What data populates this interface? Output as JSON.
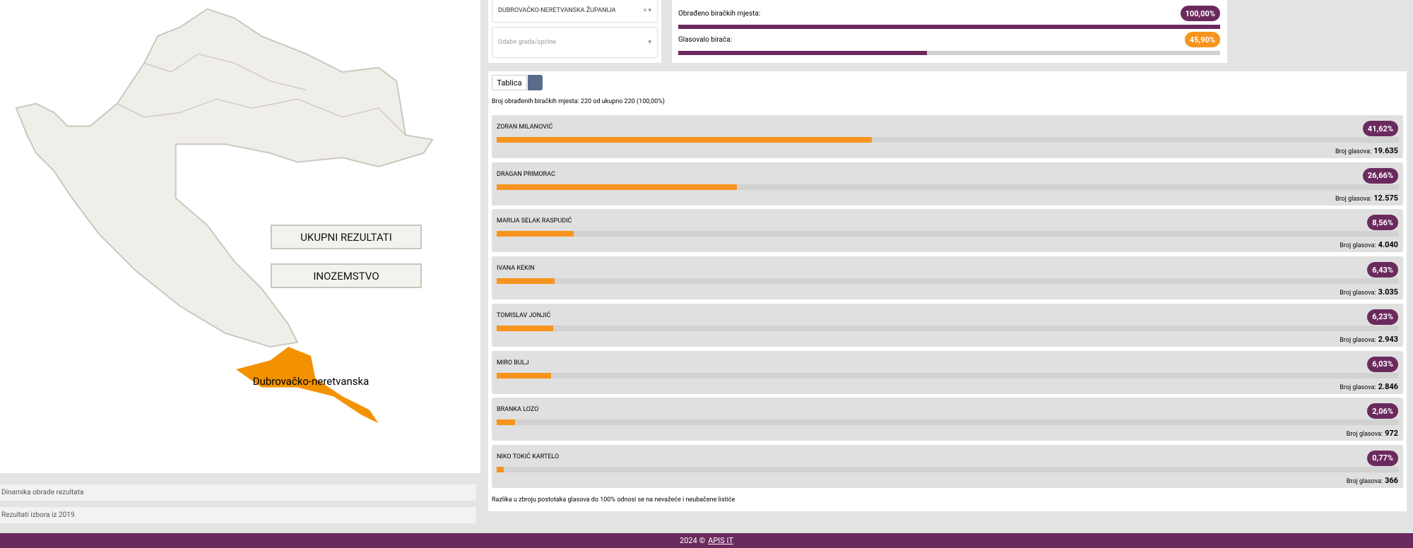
{
  "county_select": "DUBROVAČKO-NERETVANSKA ŽUPANIJA",
  "city_select": "Odabir grada/općine",
  "map": {
    "region_label": "Dubrovačko-neretvanska",
    "buttons": [
      "UKUPNI REZULTATI",
      "INOZEMSTVO"
    ]
  },
  "side_links": [
    "Dinamika obrade rezultata",
    "Rezultati izbora iz 2019."
  ],
  "stats": [
    {
      "label": "Obrađeno biračkih mjesta:",
      "value": 100.0,
      "value_label": "100,00%"
    },
    {
      "label": "Glasovalo birača:",
      "value": 45.9,
      "value_label": "45,90%"
    }
  ],
  "tabs": [
    "Tablica"
  ],
  "processed_info": "Broj obrađenih biračkih mjesta: 220 od ukupno 220 (100,00%)",
  "votes_label": "Broj glasova:",
  "candidates": [
    {
      "name": "ZORAN MILANOVIĆ",
      "share": 41.62,
      "share_label": "41,62%",
      "votes": "19.635"
    },
    {
      "name": "DRAGAN PRIMORAC",
      "share": 26.66,
      "share_label": "26,66%",
      "votes": "12.575"
    },
    {
      "name": "MARIJA SELAK RASPUDIĆ",
      "share": 8.56,
      "share_label": "8,56%",
      "votes": "4.040"
    },
    {
      "name": "IVANA KEKIN",
      "share": 6.43,
      "share_label": "6,43%",
      "votes": "3.035"
    },
    {
      "name": "TOMISLAV JONJIĆ",
      "share": 6.23,
      "share_label": "6,23%",
      "votes": "2.943"
    },
    {
      "name": "MIRO BULJ",
      "share": 6.03,
      "share_label": "6,03%",
      "votes": "2.846"
    },
    {
      "name": "BRANKA LOZO",
      "share": 2.06,
      "share_label": "2,06%",
      "votes": "972"
    },
    {
      "name": "NIKO TOKIĆ KARTELO",
      "share": 0.77,
      "share_label": "0,77%",
      "votes": "366"
    }
  ],
  "footnote": "Razlika u zbroju postotaka glasova do 100% odnosi se na nevažeće i neubačene listiće",
  "footer": {
    "year": "2024 ©",
    "link": "APIS IT"
  }
}
